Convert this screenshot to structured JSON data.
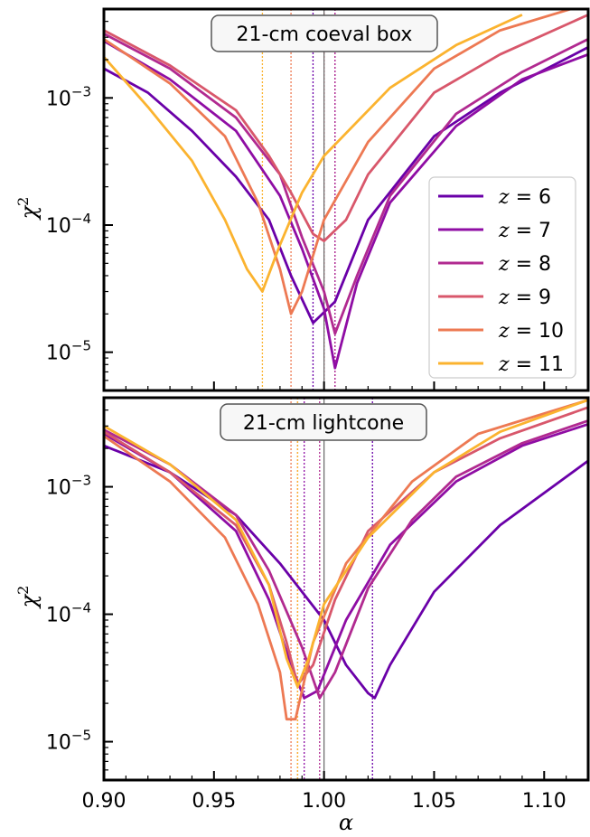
{
  "colors": {
    "z6": "#6a00a8",
    "z7": "#8f0da4",
    "z8": "#b12a90",
    "z9": "#d8576b",
    "z10": "#ed7953",
    "z11": "#fbb32f",
    "true_line": "#666666"
  },
  "chart_data": [
    {
      "type": "line",
      "title": "21-cm coeval box",
      "xlabel": "α",
      "ylabel": "χ²",
      "xlim": [
        0.9,
        1.12
      ],
      "ylim": [
        5e-06,
        0.005
      ],
      "yscale": "log",
      "x_ticks": [
        0.9,
        0.95,
        1.0,
        1.05,
        1.1
      ],
      "x_tick_labels": [
        "",
        "",
        "",
        "",
        ""
      ],
      "y_ticks": [
        1e-05,
        0.0001,
        0.001
      ],
      "y_tick_labels": [
        {
          "base": "10",
          "exp": "−5"
        },
        {
          "base": "10",
          "exp": "−4"
        },
        {
          "base": "10",
          "exp": "−3"
        }
      ],
      "legend_position": "lower right",
      "reference_line": 1.0,
      "series": [
        {
          "name": "z = 6",
          "color_key": "z6",
          "minimum": 0.995,
          "x": [
            0.9,
            0.92,
            0.94,
            0.96,
            0.975,
            0.985,
            0.995,
            1.005,
            1.02,
            1.05,
            1.08,
            1.12
          ],
          "y": [
            0.0017,
            0.0011,
            0.00055,
            0.00024,
            0.00011,
            4e-05,
            1.7e-05,
            2.5e-05,
            0.00011,
            0.0005,
            0.0011,
            0.0025
          ]
        },
        {
          "name": "z = 7",
          "color_key": "z7",
          "minimum": 1.005,
          "x": [
            0.9,
            0.93,
            0.96,
            0.98,
            0.99,
            1.0,
            1.005,
            1.015,
            1.03,
            1.06,
            1.09,
            1.12
          ],
          "y": [
            0.0028,
            0.0014,
            0.00055,
            0.00017,
            6.5e-05,
            2.2e-05,
            7.5e-06,
            3.5e-05,
            0.00015,
            0.0006,
            0.0014,
            0.0022
          ]
        },
        {
          "name": "z = 8",
          "color_key": "z8",
          "minimum": 1.005,
          "x": [
            0.9,
            0.93,
            0.96,
            0.98,
            0.99,
            1.0,
            1.005,
            1.015,
            1.03,
            1.06,
            1.09,
            1.12
          ],
          "y": [
            0.0032,
            0.0017,
            0.0007,
            0.00025,
            8e-05,
            3e-05,
            1.4e-05,
            4e-05,
            0.00017,
            0.00075,
            0.0016,
            0.0029
          ]
        },
        {
          "name": "z = 9",
          "color_key": "z9",
          "minimum": 1.0,
          "x": [
            0.9,
            0.93,
            0.96,
            0.975,
            0.985,
            0.995,
            1.0,
            1.01,
            1.02,
            1.05,
            1.08,
            1.12
          ],
          "y": [
            0.0034,
            0.0018,
            0.0008,
            0.00035,
            0.00018,
            8.5e-05,
            7.5e-05,
            0.00011,
            0.00025,
            0.0011,
            0.0022,
            0.0045
          ]
        },
        {
          "name": "z = 10",
          "color_key": "z10",
          "minimum": 0.985,
          "x": [
            0.9,
            0.93,
            0.955,
            0.97,
            0.98,
            0.985,
            0.99,
            1.0,
            1.02,
            1.05,
            1.08,
            1.12
          ],
          "y": [
            0.0029,
            0.0013,
            0.0005,
            0.00015,
            4.5e-05,
            2e-05,
            3e-05,
            0.00011,
            0.00045,
            0.0017,
            0.0034,
            0.0055
          ]
        },
        {
          "name": "z = 11",
          "color_key": "z11",
          "minimum": 0.972,
          "x": [
            0.9,
            0.92,
            0.94,
            0.955,
            0.965,
            0.972,
            0.98,
            0.99,
            1.0,
            1.03,
            1.06,
            1.09
          ],
          "y": [
            0.0021,
            0.00085,
            0.00032,
            0.00011,
            4.5e-05,
            3e-05,
            7e-05,
            0.00018,
            0.00035,
            0.0012,
            0.0026,
            0.0045
          ]
        }
      ]
    },
    {
      "type": "line",
      "title": "21-cm lightcone",
      "xlabel": "α",
      "ylabel": "χ²",
      "xlim": [
        0.9,
        1.12
      ],
      "ylim": [
        5e-06,
        0.005
      ],
      "yscale": "log",
      "x_ticks": [
        0.9,
        0.95,
        1.0,
        1.05,
        1.1
      ],
      "x_tick_labels": [
        "0.90",
        "0.95",
        "1.00",
        "1.05",
        "1.10"
      ],
      "y_ticks": [
        1e-05,
        0.0001,
        0.001
      ],
      "y_tick_labels": [
        {
          "base": "10",
          "exp": "−5"
        },
        {
          "base": "10",
          "exp": "−4"
        },
        {
          "base": "10",
          "exp": "−3"
        }
      ],
      "reference_line": 1.0,
      "series": [
        {
          "name": "z = 6",
          "color_key": "z6",
          "minimum": 1.022,
          "x": [
            0.9,
            0.93,
            0.96,
            0.98,
            1.0,
            1.01,
            1.02,
            1.023,
            1.03,
            1.05,
            1.08,
            1.12
          ],
          "y": [
            0.0021,
            0.0013,
            0.0006,
            0.00025,
            9e-05,
            4e-05,
            2.4e-05,
            2.2e-05,
            4e-05,
            0.00015,
            0.0005,
            0.0016
          ]
        },
        {
          "name": "z = 7",
          "color_key": "z7",
          "minimum": 0.991,
          "x": [
            0.9,
            0.93,
            0.96,
            0.975,
            0.985,
            0.991,
            0.997,
            1.01,
            1.03,
            1.06,
            1.09,
            1.12
          ],
          "y": [
            0.0026,
            0.0013,
            0.00045,
            0.00013,
            4e-05,
            2.2e-05,
            2.5e-05,
            9e-05,
            0.00035,
            0.0011,
            0.0021,
            0.0031
          ]
        },
        {
          "name": "z = 8",
          "color_key": "z8",
          "minimum": 0.998,
          "x": [
            0.9,
            0.93,
            0.96,
            0.975,
            0.99,
            0.998,
            1.005,
            1.02,
            1.04,
            1.06,
            1.09,
            1.12
          ],
          "y": [
            0.0028,
            0.0015,
            0.0006,
            0.00022,
            5.5e-05,
            2.2e-05,
            3.5e-05,
            0.00016,
            0.00055,
            0.0012,
            0.0022,
            0.0033
          ]
        },
        {
          "name": "z = 9",
          "color_key": "z9",
          "minimum": 0.988,
          "x": [
            0.9,
            0.93,
            0.96,
            0.975,
            0.983,
            0.988,
            0.995,
            1.005,
            1.02,
            1.05,
            1.08,
            1.12
          ],
          "y": [
            0.0027,
            0.0013,
            0.0005,
            0.00017,
            6e-05,
            2.8e-05,
            4e-05,
            0.00013,
            0.00045,
            0.0013,
            0.0024,
            0.0042
          ]
        },
        {
          "name": "z = 10",
          "color_key": "z10",
          "minimum": 0.985,
          "x": [
            0.9,
            0.93,
            0.955,
            0.97,
            0.98,
            0.983,
            0.987,
            0.995,
            1.01,
            1.04,
            1.07,
            1.12
          ],
          "y": [
            0.0025,
            0.0011,
            0.0004,
            0.00012,
            3.5e-05,
            1.5e-05,
            1.5e-05,
            6e-05,
            0.00025,
            0.0011,
            0.0026,
            0.0048
          ]
        },
        {
          "name": "z = 11",
          "color_key": "z11",
          "minimum": 0.988,
          "x": [
            0.9,
            0.93,
            0.96,
            0.975,
            0.983,
            0.988,
            0.993,
            1.0,
            1.02,
            1.05,
            1.08,
            1.12
          ],
          "y": [
            0.003,
            0.0015,
            0.00055,
            0.00017,
            4.5e-05,
            2.7e-05,
            4.5e-05,
            0.00012,
            0.0004,
            0.0013,
            0.0027,
            0.0048
          ]
        }
      ]
    }
  ]
}
